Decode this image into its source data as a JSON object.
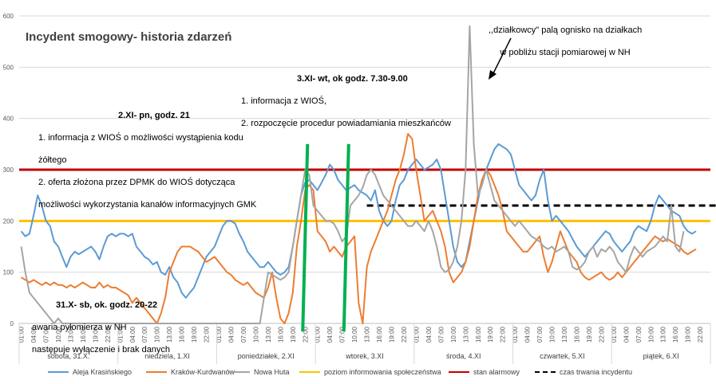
{
  "chart_data": {
    "type": "line",
    "title": "Incydent smogowy- historia zdarzeń",
    "ylim": [
      0,
      600
    ],
    "yticks": [
      0,
      100,
      200,
      300,
      400,
      500,
      600
    ],
    "hour_labels": [
      "01:00",
      "04:00",
      "07:00",
      "10:00",
      "13:00",
      "16:00",
      "19:00",
      "22:00"
    ],
    "days": [
      "sobota, 31.X.",
      "niedziela, 1.XI",
      "poniedziałek, 2.XI",
      "wtorek, 3.XI",
      "środa, 4.XI",
      "czwartek, 5.XI",
      "piątek, 6.XI"
    ],
    "thresholds": [
      {
        "name": "poziom informowania społeczeństwa",
        "value": 200,
        "color": "#FFC000"
      },
      {
        "name": "stan alarmowy",
        "value": 300,
        "color": "#C00000"
      }
    ],
    "incident": {
      "name": "czas trwania incydentu",
      "value": 230,
      "start_hour": 84,
      "end_hour": 175,
      "color": "#000000"
    },
    "events": [
      {
        "label": "2.XI- pn, godz. 21",
        "hour": 69,
        "color": "#00B050"
      },
      {
        "label": "3.XI- wt, ok godz. 7.30-9.00",
        "hour": 79,
        "color": "#00B050"
      }
    ],
    "series": [
      {
        "name": "Aleja Krasińskiego",
        "color": "#5B9BD5",
        "values": [
          180,
          170,
          175,
          210,
          250,
          230,
          200,
          190,
          160,
          150,
          130,
          110,
          130,
          140,
          135,
          140,
          145,
          150,
          140,
          125,
          150,
          170,
          175,
          170,
          175,
          175,
          170,
          175,
          150,
          140,
          130,
          125,
          115,
          120,
          100,
          95,
          110,
          90,
          80,
          60,
          50,
          60,
          70,
          90,
          110,
          130,
          140,
          150,
          170,
          190,
          200,
          200,
          195,
          175,
          160,
          140,
          130,
          120,
          110,
          110,
          120,
          110,
          100,
          95,
          100,
          110,
          150,
          200,
          250,
          275,
          280,
          270,
          260,
          275,
          290,
          310,
          300,
          280,
          270,
          260,
          265,
          270,
          260,
          255,
          250,
          240,
          260,
          220,
          200,
          190,
          200,
          240,
          270,
          280,
          300,
          310,
          320,
          310,
          300,
          305,
          310,
          320,
          300,
          250,
          200,
          150,
          120,
          110,
          120,
          160,
          200,
          240,
          280,
          300,
          320,
          340,
          350,
          345,
          340,
          330,
          300,
          270,
          260,
          250,
          240,
          250,
          280,
          300,
          240,
          200,
          210,
          200,
          190,
          180,
          165,
          150,
          140,
          130,
          140,
          150,
          160,
          170,
          180,
          175,
          160,
          150,
          140,
          150,
          160,
          180,
          190,
          185,
          180,
          200,
          230,
          250,
          240,
          230,
          220,
          215,
          210,
          190,
          180,
          175,
          180
        ]
      },
      {
        "name": "Kraków-Kurdwanów",
        "color": "#ED7D31",
        "values": [
          90,
          85,
          80,
          85,
          80,
          75,
          80,
          75,
          80,
          75,
          75,
          70,
          75,
          70,
          75,
          80,
          75,
          70,
          70,
          80,
          70,
          75,
          70,
          70,
          65,
          60,
          55,
          40,
          50,
          40,
          30,
          20,
          10,
          0,
          20,
          50,
          100,
          120,
          140,
          150,
          150,
          150,
          145,
          140,
          130,
          120,
          125,
          130,
          120,
          110,
          100,
          95,
          85,
          80,
          75,
          80,
          70,
          60,
          55,
          50,
          70,
          100,
          50,
          10,
          0,
          20,
          60,
          150,
          200,
          260,
          270,
          260,
          180,
          170,
          160,
          140,
          150,
          140,
          130,
          150,
          160,
          170,
          40,
          0,
          110,
          140,
          160,
          180,
          200,
          220,
          250,
          280,
          300,
          330,
          370,
          360,
          300,
          250,
          200,
          210,
          220,
          200,
          180,
          150,
          100,
          80,
          90,
          100,
          120,
          150,
          200,
          250,
          280,
          300,
          290,
          270,
          250,
          220,
          180,
          170,
          160,
          150,
          140,
          140,
          150,
          160,
          170,
          130,
          100,
          120,
          150,
          180,
          160,
          140,
          130,
          120,
          100,
          90,
          85,
          90,
          95,
          100,
          90,
          85,
          90,
          100,
          90,
          100,
          110,
          120,
          130,
          140,
          150,
          160,
          170,
          165,
          160,
          165,
          160,
          155,
          150,
          140,
          135,
          140,
          145
        ]
      },
      {
        "name": "Nowa Huta",
        "color": "#A5A5A5",
        "values": [
          150,
          100,
          60,
          50,
          40,
          30,
          20,
          10,
          0,
          10,
          0,
          0,
          0,
          0,
          0,
          0,
          0,
          0,
          0,
          0,
          0,
          0,
          0,
          0,
          0,
          0,
          0,
          0,
          0,
          0,
          0,
          0,
          0,
          0,
          0,
          0,
          0,
          0,
          0,
          0,
          0,
          0,
          0,
          0,
          0,
          0,
          0,
          0,
          0,
          0,
          0,
          0,
          0,
          0,
          0,
          0,
          0,
          0,
          0,
          50,
          100,
          95,
          90,
          85,
          90,
          100,
          150,
          200,
          250,
          300,
          290,
          230,
          220,
          210,
          200,
          200,
          195,
          180,
          160,
          170,
          230,
          240,
          250,
          265,
          290,
          300,
          290,
          270,
          250,
          240,
          230,
          220,
          210,
          200,
          190,
          190,
          200,
          190,
          180,
          200,
          180,
          150,
          110,
          100,
          105,
          120,
          150,
          200,
          300,
          580,
          350,
          250,
          270,
          300,
          270,
          240,
          230,
          220,
          210,
          200,
          190,
          200,
          190,
          180,
          170,
          165,
          160,
          150,
          145,
          150,
          140,
          145,
          150,
          140,
          110,
          105,
          110,
          120,
          140,
          150,
          130,
          145,
          140,
          150,
          140,
          120,
          110,
          100,
          130,
          150,
          140,
          130,
          140,
          145,
          150,
          160,
          170,
          160,
          230,
          150,
          140,
          180
        ]
      }
    ]
  },
  "title": "Incydent smogowy- historia zdarzeń",
  "annotations": {
    "nowa_huta_title": ",,działkowcy\" palą ognisko na działkach",
    "nowa_huta_line2": "w pobliżu stacji pomiarowej w NH",
    "wt_title": "3.XI- wt, ok godz. 7.30-9.00",
    "wt_item1": "1. informacja z WIOŚ,",
    "wt_item2": "2. rozpoczęcie procedur powiadamiania mieszkańców",
    "pn_title": "2.XI- pn, godz. 21",
    "pn_item1": "1. informacja z WIOŚ o możliwości wystąpienia kodu",
    "pn_item1b": "żółtego",
    "pn_item2": "2. oferta złożona przez DPMK do WIOŚ dotycząca",
    "pn_item2b": "możliwości wykorzystania kanałów informacyjnych GMK",
    "sb_title": "31.X- sb, ok. godz. 20-22",
    "sb_line1": "awaria pyłomierza w NH",
    "sb_line2": "następuje wyłączenie i brak danych"
  },
  "legend": {
    "s1": "Aleja Krasińskiego",
    "s2": "Kraków-Kurdwanów",
    "s3": "Nowa Huta",
    "info": "poziom informowania społeczeństwa",
    "alarm": "stan alarmowy",
    "incident": "czas trwania incydentu"
  },
  "colors": {
    "s1": "#5B9BD5",
    "s2": "#ED7D31",
    "s3": "#A5A5A5",
    "info": "#FFC000",
    "alarm": "#C00000",
    "event": "#00B050"
  }
}
